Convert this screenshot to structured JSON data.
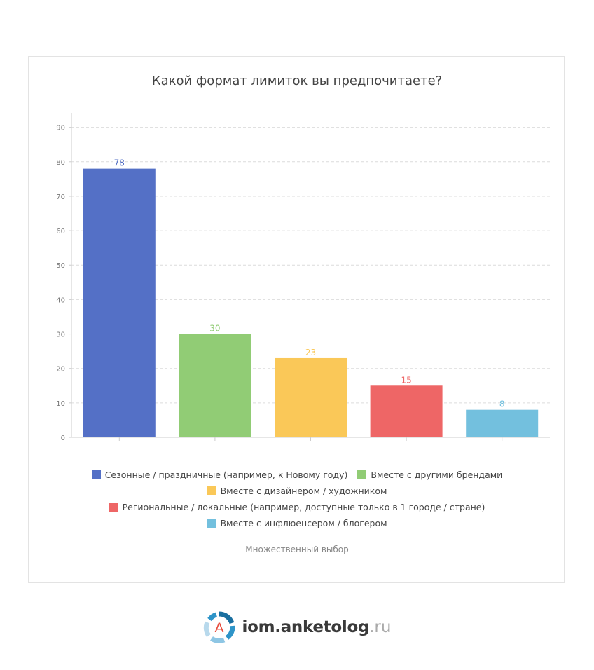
{
  "chart_data": {
    "type": "bar",
    "title": "Какой формат лимиток вы предпочитаете?",
    "categories": [
      "Сезонные / праздничные (например, к Новому году)",
      "Вместе с другими брендами",
      "Вместе с дизайнером / художником",
      "Региональные / локальные (например, доступные только в 1 городе / стране)",
      "Вместе с инфлюенсером / блогером"
    ],
    "values": [
      78,
      30,
      23,
      15,
      8
    ],
    "colors": [
      "#5470c6",
      "#91cc75",
      "#fac858",
      "#ee6666",
      "#73c0de"
    ],
    "ylim": [
      0,
      90
    ],
    "yticks": [
      0,
      10,
      20,
      30,
      40,
      50,
      60,
      70,
      80,
      90
    ],
    "grid": true,
    "legend_position": "bottom"
  },
  "note": "Множественный выбор",
  "brand": {
    "logo_letter": "A",
    "name": "iom.anketolog",
    "tld": ".ru"
  }
}
